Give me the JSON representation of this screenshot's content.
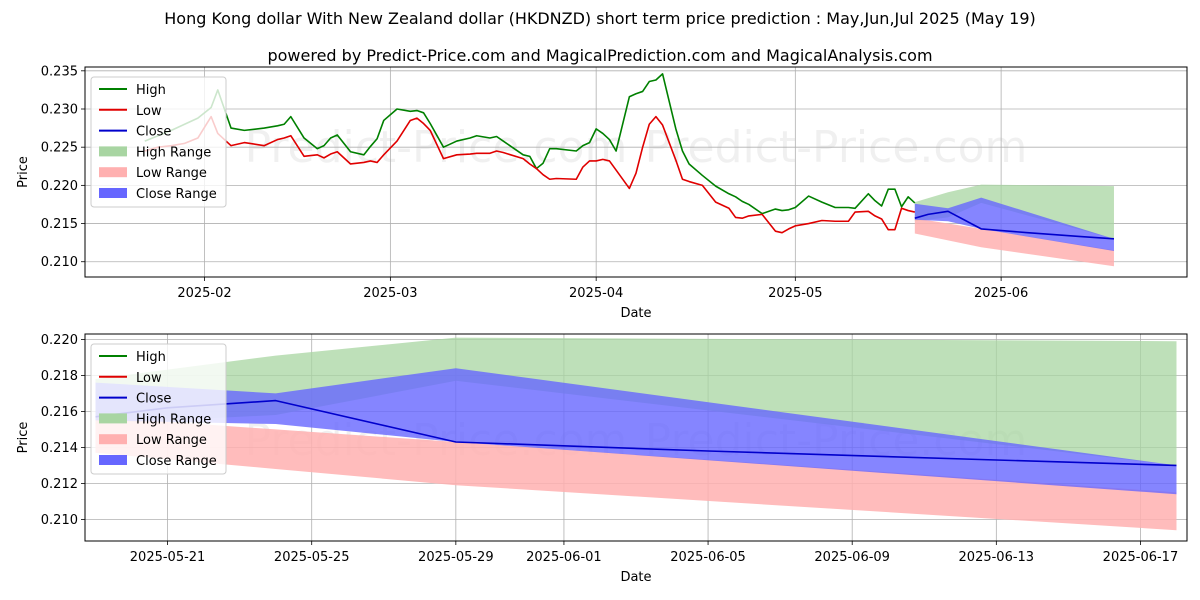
{
  "title": "Hong Kong dollar With New Zealand dollar (HKDNZD) short term price prediction : May,Jun,Jul 2025 (May 19)",
  "subtitle": "powered by Predict-Price.com and MagicalPrediction.com and MagicalAnalysis.com",
  "watermark": "Predict-Price.com",
  "colors": {
    "high": "#008000",
    "low": "#e00000",
    "close": "#0000cc",
    "high_range": "#a8d5a2",
    "low_range": "#ffb0b0",
    "close_range": "#6666ff"
  },
  "chart_data": [
    {
      "type": "line",
      "xlabel": "Date",
      "ylabel": "Price",
      "ylim": [
        0.208,
        0.2355
      ],
      "y_ticks": [
        0.21,
        0.215,
        0.22,
        0.225,
        0.23,
        0.235
      ],
      "y_tick_labels": [
        "0.210",
        "0.215",
        "0.220",
        "0.225",
        "0.230",
        "0.235"
      ],
      "x_ticks": [
        "2025-02",
        "2025-03",
        "2025-04",
        "2025-05",
        "2025-06"
      ],
      "x_tick_dates": [
        "2025-02-01",
        "2025-03-01",
        "2025-04-01",
        "2025-05-01",
        "2025-06-01"
      ],
      "xlim": [
        "2025-01-14",
        "2025-06-29"
      ],
      "grid": true,
      "legend": "top-left",
      "legend_items": [
        "High",
        "Low",
        "Close",
        "High Range",
        "Low Range",
        "Close Range"
      ],
      "series": [
        {
          "name": "High",
          "dates": [
            "2025-01-23",
            "2025-01-25",
            "2025-01-27",
            "2025-01-29",
            "2025-01-31",
            "2025-02-02",
            "2025-02-03",
            "2025-02-05",
            "2025-02-07",
            "2025-02-10",
            "2025-02-12",
            "2025-02-13",
            "2025-02-14",
            "2025-02-16",
            "2025-02-18",
            "2025-02-19",
            "2025-02-20",
            "2025-02-21",
            "2025-02-23",
            "2025-02-25",
            "2025-02-26",
            "2025-02-27",
            "2025-02-28",
            "2025-03-02",
            "2025-03-04",
            "2025-03-05",
            "2025-03-06",
            "2025-03-07",
            "2025-03-09",
            "2025-03-11",
            "2025-03-13",
            "2025-03-14",
            "2025-03-16",
            "2025-03-17",
            "2025-03-18",
            "2025-03-21",
            "2025-03-22",
            "2025-03-23",
            "2025-03-24",
            "2025-03-25",
            "2025-03-26",
            "2025-03-29",
            "2025-03-30",
            "2025-03-31",
            "2025-04-01",
            "2025-04-02",
            "2025-04-03",
            "2025-04-04",
            "2025-04-06",
            "2025-04-07",
            "2025-04-08",
            "2025-04-09",
            "2025-04-10",
            "2025-04-11",
            "2025-04-13",
            "2025-04-14",
            "2025-04-15",
            "2025-04-17",
            "2025-04-19",
            "2025-04-21",
            "2025-04-22",
            "2025-04-23",
            "2025-04-24",
            "2025-04-26",
            "2025-04-28",
            "2025-04-29",
            "2025-04-30",
            "2025-05-01",
            "2025-05-03",
            "2025-05-05",
            "2025-05-07",
            "2025-05-09",
            "2025-05-10",
            "2025-05-12",
            "2025-05-13",
            "2025-05-14",
            "2025-05-15",
            "2025-05-16",
            "2025-05-17",
            "2025-05-18",
            "2025-05-19"
          ],
          "values": [
            0.2258,
            0.2265,
            0.2272,
            0.228,
            0.2288,
            0.2302,
            0.2325,
            0.2275,
            0.2272,
            0.2275,
            0.2278,
            0.228,
            0.229,
            0.2262,
            0.2248,
            0.2252,
            0.2262,
            0.2266,
            0.2244,
            0.224,
            0.2251,
            0.2261,
            0.2285,
            0.23,
            0.2297,
            0.2298,
            0.2295,
            0.2281,
            0.225,
            0.2258,
            0.2262,
            0.2265,
            0.2262,
            0.2264,
            0.2258,
            0.224,
            0.2238,
            0.2222,
            0.2229,
            0.2248,
            0.2248,
            0.2245,
            0.2252,
            0.2256,
            0.2274,
            0.2268,
            0.226,
            0.2245,
            0.2316,
            0.232,
            0.2323,
            0.2336,
            0.2338,
            0.2346,
            0.2274,
            0.2245,
            0.2228,
            0.2213,
            0.2199,
            0.2189,
            0.2185,
            0.2179,
            0.2175,
            0.2163,
            0.2169,
            0.2167,
            0.2168,
            0.2171,
            0.2186,
            0.2178,
            0.2171,
            0.2171,
            0.217,
            0.2189,
            0.218,
            0.2173,
            0.2195,
            0.2195,
            0.2172,
            0.2185,
            0.2177
          ]
        },
        {
          "name": "Low",
          "dates": [
            "2025-01-23",
            "2025-01-25",
            "2025-01-27",
            "2025-01-29",
            "2025-01-31",
            "2025-02-02",
            "2025-02-03",
            "2025-02-05",
            "2025-02-07",
            "2025-02-10",
            "2025-02-12",
            "2025-02-13",
            "2025-02-14",
            "2025-02-16",
            "2025-02-18",
            "2025-02-19",
            "2025-02-20",
            "2025-02-21",
            "2025-02-23",
            "2025-02-25",
            "2025-02-26",
            "2025-02-27",
            "2025-02-28",
            "2025-03-02",
            "2025-03-04",
            "2025-03-05",
            "2025-03-06",
            "2025-03-07",
            "2025-03-09",
            "2025-03-11",
            "2025-03-13",
            "2025-03-14",
            "2025-03-16",
            "2025-03-17",
            "2025-03-18",
            "2025-03-21",
            "2025-03-22",
            "2025-03-23",
            "2025-03-24",
            "2025-03-25",
            "2025-03-26",
            "2025-03-29",
            "2025-03-30",
            "2025-03-31",
            "2025-04-01",
            "2025-04-02",
            "2025-04-03",
            "2025-04-04",
            "2025-04-06",
            "2025-04-07",
            "2025-04-08",
            "2025-04-09",
            "2025-04-10",
            "2025-04-11",
            "2025-04-13",
            "2025-04-14",
            "2025-04-15",
            "2025-04-17",
            "2025-04-19",
            "2025-04-21",
            "2025-04-22",
            "2025-04-23",
            "2025-04-24",
            "2025-04-26",
            "2025-04-28",
            "2025-04-29",
            "2025-04-30",
            "2025-05-01",
            "2025-05-03",
            "2025-05-05",
            "2025-05-07",
            "2025-05-09",
            "2025-05-10",
            "2025-05-12",
            "2025-05-13",
            "2025-05-14",
            "2025-05-15",
            "2025-05-16",
            "2025-05-17",
            "2025-05-18",
            "2025-05-19"
          ],
          "values": [
            0.2245,
            0.225,
            0.2252,
            0.2255,
            0.2262,
            0.229,
            0.2268,
            0.2252,
            0.2256,
            0.2252,
            0.226,
            0.2262,
            0.2265,
            0.2238,
            0.224,
            0.2236,
            0.2241,
            0.2244,
            0.2228,
            0.223,
            0.2232,
            0.223,
            0.224,
            0.2258,
            0.2285,
            0.2288,
            0.2281,
            0.2272,
            0.2235,
            0.224,
            0.2241,
            0.2242,
            0.2242,
            0.2245,
            0.2243,
            0.2235,
            0.2228,
            0.2222,
            0.2214,
            0.2208,
            0.2209,
            0.2208,
            0.2224,
            0.2232,
            0.2232,
            0.2234,
            0.2232,
            0.222,
            0.2196,
            0.2216,
            0.225,
            0.228,
            0.229,
            0.2279,
            0.2233,
            0.2208,
            0.2205,
            0.22,
            0.2178,
            0.217,
            0.2158,
            0.2157,
            0.216,
            0.2162,
            0.214,
            0.2138,
            0.2143,
            0.2147,
            0.215,
            0.2154,
            0.2153,
            0.2153,
            0.2165,
            0.2166,
            0.216,
            0.2156,
            0.2142,
            0.2142,
            0.217,
            0.2167,
            0.2165
          ]
        },
        {
          "name": "Close",
          "dates": [
            "2025-05-19",
            "2025-05-21",
            "2025-05-24",
            "2025-05-29",
            "2025-06-05",
            "2025-06-13",
            "2025-06-18"
          ],
          "values": [
            0.2157,
            0.2162,
            0.2166,
            0.2143,
            0.2138,
            0.2133,
            0.213
          ]
        }
      ],
      "ranges": [
        {
          "name": "High Range",
          "dates": [
            "2025-05-19",
            "2025-05-24",
            "2025-05-29",
            "2025-06-18"
          ],
          "upper": [
            0.2178,
            0.2191,
            0.2201,
            0.2199
          ],
          "lower": [
            0.2153,
            0.2158,
            0.2177,
            0.213
          ]
        },
        {
          "name": "Low Range",
          "dates": [
            "2025-05-19",
            "2025-05-24",
            "2025-05-29",
            "2025-06-18"
          ],
          "upper": [
            0.2157,
            0.215,
            0.2143,
            0.2115
          ],
          "lower": [
            0.2137,
            0.2128,
            0.2119,
            0.2094
          ]
        },
        {
          "name": "Close Range",
          "dates": [
            "2025-05-19",
            "2025-05-24",
            "2025-05-29",
            "2025-06-18"
          ],
          "upper": [
            0.2176,
            0.217,
            0.2184,
            0.213
          ],
          "lower": [
            0.2155,
            0.2153,
            0.2143,
            0.2114
          ]
        }
      ]
    },
    {
      "type": "line",
      "xlabel": "Date",
      "ylabel": "Price",
      "ylim": [
        0.2088,
        0.2203
      ],
      "y_ticks": [
        0.21,
        0.212,
        0.214,
        0.216,
        0.218,
        0.22
      ],
      "y_tick_labels": [
        "0.210",
        "0.212",
        "0.214",
        "0.216",
        "0.218",
        "0.220"
      ],
      "x_ticks": [
        "2025-05-21",
        "2025-05-25",
        "2025-05-29",
        "2025-06-01",
        "2025-06-05",
        "2025-06-09",
        "2025-06-13",
        "2025-06-17"
      ],
      "xlim": [
        "2025-05-18T17:00",
        "2025-06-18T07:00"
      ],
      "grid": true,
      "legend": "top-left",
      "legend_items": [
        "High",
        "Low",
        "Close",
        "High Range",
        "Low Range",
        "Close Range"
      ],
      "series": [
        {
          "name": "Close",
          "dates": [
            "2025-05-19",
            "2025-05-21",
            "2025-05-24",
            "2025-05-29",
            "2025-06-05",
            "2025-06-13",
            "2025-06-18"
          ],
          "values": [
            0.2157,
            0.2162,
            0.2166,
            0.2143,
            0.2138,
            0.2133,
            0.213
          ]
        }
      ],
      "ranges": [
        {
          "name": "High Range",
          "dates": [
            "2025-05-19",
            "2025-05-24",
            "2025-05-29",
            "2025-06-18"
          ],
          "upper": [
            0.2178,
            0.2191,
            0.2201,
            0.2199
          ],
          "lower": [
            0.2153,
            0.2158,
            0.2177,
            0.213
          ]
        },
        {
          "name": "Low Range",
          "dates": [
            "2025-05-19",
            "2025-05-24",
            "2025-05-29",
            "2025-06-18"
          ],
          "upper": [
            0.2157,
            0.215,
            0.2143,
            0.2115
          ],
          "lower": [
            0.2137,
            0.2128,
            0.2119,
            0.2094
          ]
        },
        {
          "name": "Close Range",
          "dates": [
            "2025-05-19",
            "2025-05-24",
            "2025-05-29",
            "2025-06-18"
          ],
          "upper": [
            0.2176,
            0.217,
            0.2184,
            0.213
          ],
          "lower": [
            0.2155,
            0.2153,
            0.2143,
            0.2114
          ]
        }
      ]
    }
  ]
}
